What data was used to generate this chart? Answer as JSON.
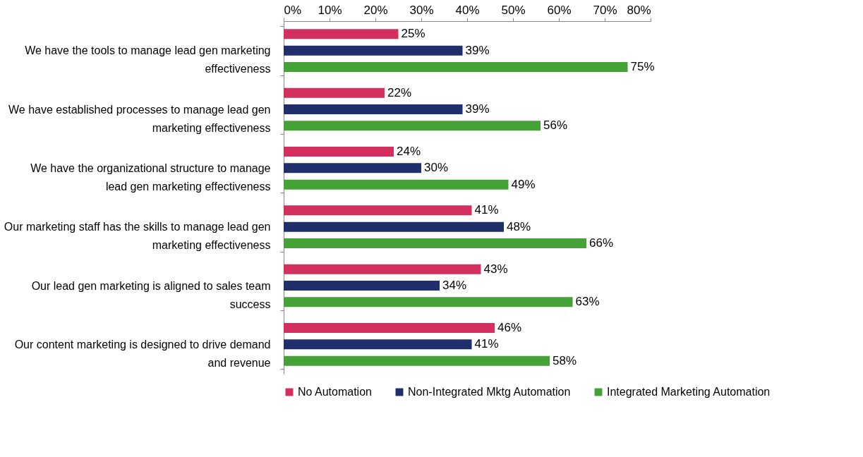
{
  "chart_data": {
    "type": "bar",
    "orientation": "horizontal",
    "categories": [
      "We have the tools to manage lead gen marketing\neffectiveness",
      "We have established processes to manage lead gen\nmarketing effectiveness",
      "We have the organizational structure to manage\nlead gen marketing effectiveness",
      "Our marketing staff has the skills to manage lead gen\nmarketing effectiveness",
      "Our lead gen marketing is aligned to sales team\nsuccess",
      "Our content marketing is designed to drive demand\nand revenue"
    ],
    "series": [
      {
        "name": "No Automation",
        "color": "#d4305f",
        "values": [
          25,
          22,
          24,
          41,
          43,
          46
        ],
        "value_labels": [
          "25%",
          "22%",
          "24%",
          "41%",
          "43%",
          "46%"
        ]
      },
      {
        "name": "Non-Integrated Mktg Automation",
        "color": "#1f2f6b",
        "values": [
          39,
          39,
          30,
          48,
          34,
          41
        ],
        "value_labels": [
          "39%",
          "39%",
          "30%",
          "48%",
          "34%",
          "41%"
        ]
      },
      {
        "name": "Integrated Marketing Automation",
        "color": "#45a237",
        "values": [
          75,
          56,
          49,
          66,
          63,
          58
        ],
        "value_labels": [
          "75%",
          "56%",
          "49%",
          "66%",
          "63%",
          "58%"
        ]
      }
    ],
    "xlim": [
      0,
      80
    ],
    "xticks": [
      {
        "value": 0,
        "label": "0%"
      },
      {
        "value": 10,
        "label": "10%"
      },
      {
        "value": 20,
        "label": "20%"
      },
      {
        "value": 30,
        "label": "30%"
      },
      {
        "value": 40,
        "label": "40%"
      },
      {
        "value": 50,
        "label": "50%"
      },
      {
        "value": 60,
        "label": "60%"
      },
      {
        "value": 70,
        "label": "70%"
      },
      {
        "value": 80,
        "label": "80%"
      }
    ],
    "grid": false,
    "legend": "bottom"
  }
}
